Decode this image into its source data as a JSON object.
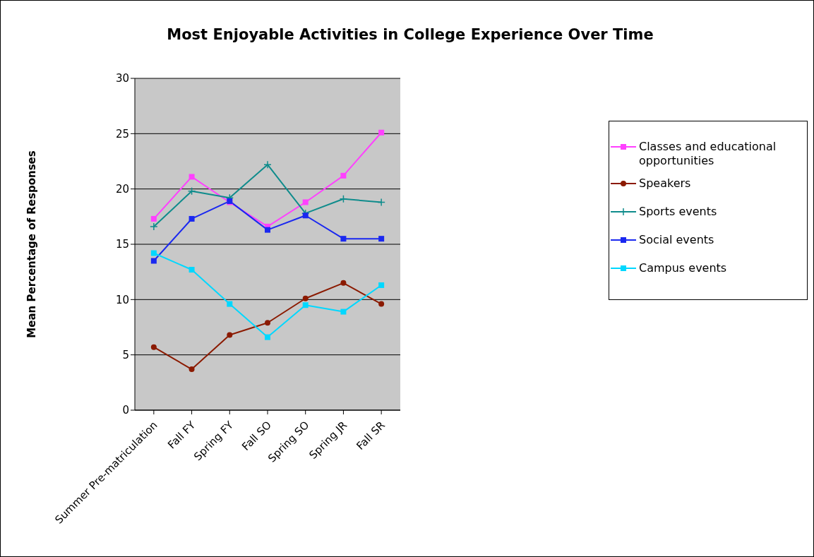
{
  "chart_data": {
    "type": "line",
    "title": "Most Enjoyable Activities in College Experience Over Time",
    "ylabel": "Mean Percentage of Responses",
    "categories": [
      "Summer Pre-matriculation",
      "Fall FY",
      "Spring FY",
      "Fall SO",
      "Spring SO",
      "Spring JR",
      "Fall SR"
    ],
    "series": [
      {
        "name": "Classes and educational opportunities",
        "color": "#ff40ff",
        "marker": "square",
        "values": [
          17.3,
          21.1,
          18.8,
          16.6,
          18.8,
          21.2,
          25.1
        ]
      },
      {
        "name": "Speakers",
        "color": "#8b1a00",
        "marker": "circle",
        "values": [
          5.7,
          3.7,
          6.8,
          7.9,
          10.1,
          11.5,
          9.6
        ]
      },
      {
        "name": "Sports events",
        "color": "#0f8c8c",
        "marker": "cross",
        "values": [
          16.6,
          19.8,
          19.2,
          22.2,
          17.8,
          19.1,
          18.8
        ]
      },
      {
        "name": "Social events",
        "color": "#1a28f0",
        "marker": "square",
        "values": [
          13.5,
          17.3,
          18.9,
          16.3,
          17.6,
          15.5,
          15.5
        ]
      },
      {
        "name": "Campus events",
        "color": "#00d8ff",
        "marker": "square",
        "values": [
          14.2,
          12.7,
          9.6,
          6.6,
          9.5,
          8.9,
          11.3
        ]
      }
    ],
    "ylim": [
      0,
      30
    ],
    "yticks": [
      0,
      5,
      10,
      15,
      20,
      25,
      30
    ],
    "grid": "y",
    "legend": "right",
    "line_style": "solid"
  }
}
